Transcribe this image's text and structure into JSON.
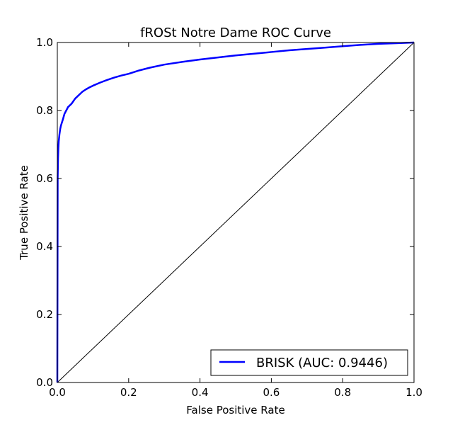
{
  "chart_data": {
    "type": "line",
    "title": "fROSt Notre Dame ROC Curve",
    "xlabel": "False Positive Rate",
    "ylabel": "True Positive Rate",
    "xlim": [
      0,
      1
    ],
    "ylim": [
      0,
      1
    ],
    "xticks": [
      "0.0",
      "0.2",
      "0.4",
      "0.6",
      "0.8",
      "1.0"
    ],
    "yticks": [
      "0.0",
      "0.2",
      "0.4",
      "0.6",
      "0.8",
      "1.0"
    ],
    "grid": false,
    "legend": {
      "position": "bottom-right",
      "entries": [
        "BRISK (AUC: 0.9446)"
      ]
    },
    "series": [
      {
        "name": "BRISK (AUC: 0.9446)",
        "color": "#0000ff",
        "x": [
          0,
          0.001,
          0.002,
          0.003,
          0.004,
          0.006,
          0.008,
          0.01,
          0.013,
          0.016,
          0.02,
          0.025,
          0.03,
          0.04,
          0.05,
          0.06,
          0.07,
          0.08,
          0.09,
          0.1,
          0.12,
          0.14,
          0.16,
          0.18,
          0.2,
          0.23,
          0.26,
          0.3,
          0.35,
          0.4,
          0.45,
          0.5,
          0.55,
          0.6,
          0.65,
          0.7,
          0.75,
          0.8,
          0.85,
          0.9,
          0.95,
          1.0
        ],
        "y": [
          0,
          0.6,
          0.66,
          0.69,
          0.71,
          0.73,
          0.745,
          0.755,
          0.765,
          0.775,
          0.79,
          0.8,
          0.81,
          0.82,
          0.835,
          0.845,
          0.855,
          0.862,
          0.868,
          0.873,
          0.882,
          0.89,
          0.897,
          0.903,
          0.908,
          0.918,
          0.926,
          0.935,
          0.943,
          0.95,
          0.956,
          0.962,
          0.967,
          0.972,
          0.977,
          0.981,
          0.985,
          0.989,
          0.993,
          0.996,
          0.998,
          1.0
        ]
      },
      {
        "name": "",
        "color": "#000000",
        "x": [
          0,
          1
        ],
        "y": [
          0,
          1
        ]
      }
    ]
  }
}
